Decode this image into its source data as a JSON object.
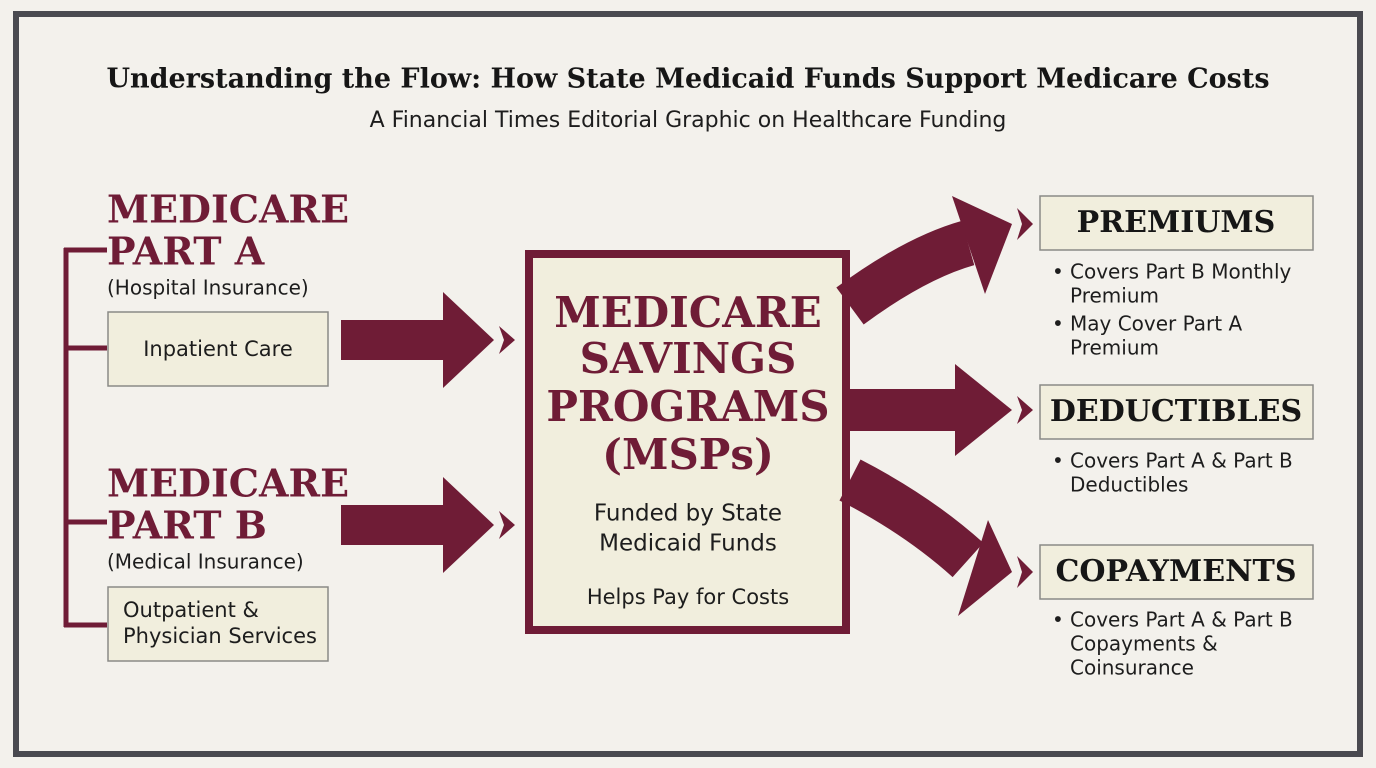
{
  "header": {
    "title": "Understanding the Flow: How State Medicaid Funds Support Medicare Costs",
    "subtitle": "A Financial Times Editorial Graphic on Healthcare Funding"
  },
  "left": {
    "groups": [
      {
        "heading": [
          "MEDICARE",
          "PART A"
        ],
        "subtitle": "(Hospital Insurance)",
        "box": [
          "Inpatient Care"
        ]
      },
      {
        "heading": [
          "MEDICARE",
          "PART B"
        ],
        "subtitle": "(Medical Insurance)",
        "box": [
          "Outpatient &",
          "Physician Services"
        ]
      }
    ]
  },
  "center": {
    "heading": [
      "MEDICARE",
      "SAVINGS",
      "PROGRAMS",
      "(MSPs)"
    ],
    "funding": [
      "Funded by State",
      "Medicaid Funds"
    ],
    "note": "Helps Pay for Costs"
  },
  "right": {
    "outputs": [
      {
        "label": "PREMIUMS",
        "bullets": [
          [
            "Covers Part B Monthly",
            "Premium"
          ],
          [
            "May Cover Part A",
            "Premium"
          ]
        ]
      },
      {
        "label": "DEDUCTIBLES",
        "bullets": [
          [
            "Covers Part A & Part B",
            "Deductibles"
          ]
        ]
      },
      {
        "label": "COPAYMENTS",
        "bullets": [
          [
            "Covers Part A & Part B",
            "Copayments &",
            "Coinsurance"
          ]
        ]
      }
    ]
  }
}
